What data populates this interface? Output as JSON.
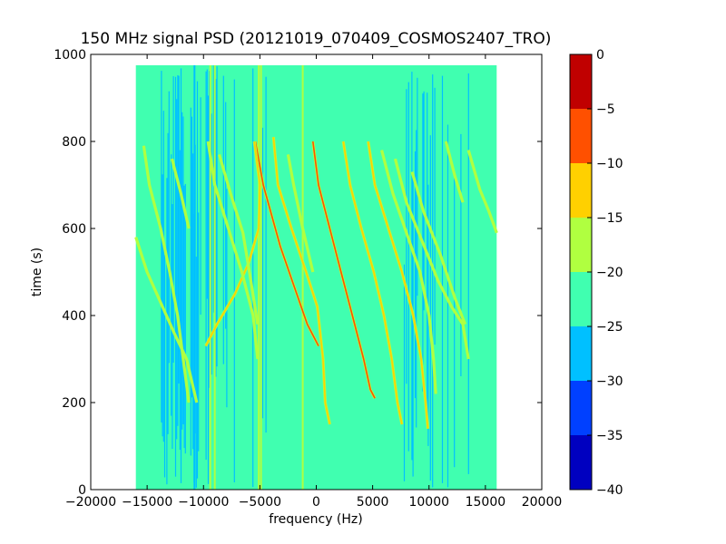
{
  "chart_data": {
    "type": "heatmap",
    "title": "150 MHz signal PSD (20121019_070409_COSMOS2407_TRO)",
    "xlabel": "frequency (Hz)",
    "ylabel": "time (s)",
    "xlim": [
      -20000,
      20000
    ],
    "ylim": [
      0,
      1000
    ],
    "xticks": [
      -20000,
      -15000,
      -10000,
      -5000,
      0,
      5000,
      10000,
      15000,
      20000
    ],
    "xtick_labels": [
      "−20000",
      "−15000",
      "−10000",
      "−5000",
      "0",
      "5000",
      "10000",
      "15000",
      "20000"
    ],
    "yticks": [
      0,
      200,
      400,
      600,
      800,
      1000
    ],
    "ytick_labels": [
      "0",
      "200",
      "400",
      "600",
      "800",
      "1000"
    ],
    "data_extent": {
      "x": [
        -16000,
        16000
      ],
      "y": [
        0,
        975
      ]
    },
    "grid": false,
    "colorbar": {
      "range": [
        -40,
        0
      ],
      "levels": [
        -40,
        -35,
        -30,
        -25,
        -20,
        -15,
        -10,
        -5,
        0
      ],
      "tick_labels": [
        "−40",
        "−35",
        "−30",
        "−25",
        "−20",
        "−15",
        "−10",
        "−5",
        "0"
      ],
      "colors": [
        "#0000c0",
        "#0040ff",
        "#00c0ff",
        "#40ffb0",
        "#b0ff40",
        "#ffd000",
        "#ff5000",
        "#c00000"
      ]
    },
    "vertical_lines": [
      {
        "x": -10800,
        "color": "#00c0ff"
      },
      {
        "x": -9400,
        "color": "#b0ff40"
      },
      {
        "x": -9000,
        "color": "#b0ff40"
      },
      {
        "x": -8600,
        "color": "#40ffb0"
      },
      {
        "x": -5100,
        "color": "#b0ff40"
      },
      {
        "x": -4900,
        "color": "#b0ff40"
      },
      {
        "x": -1200,
        "color": "#b0ff40"
      }
    ],
    "traces": [
      {
        "color": "#ff5000",
        "points": [
          [
            -5400,
            800
          ],
          [
            -4700,
            700
          ],
          [
            -3200,
            560
          ],
          [
            -2000,
            470
          ],
          [
            -800,
            380
          ],
          [
            200,
            330
          ]
        ]
      },
      {
        "color": "#ff5000",
        "points": [
          [
            -300,
            800
          ],
          [
            200,
            700
          ],
          [
            1200,
            600
          ],
          [
            2200,
            500
          ],
          [
            3200,
            400
          ],
          [
            4200,
            300
          ],
          [
            4800,
            230
          ],
          [
            5200,
            210
          ]
        ]
      },
      {
        "color": "#ffd000",
        "points": [
          [
            -3800,
            810
          ],
          [
            -3400,
            700
          ],
          [
            -2200,
            600
          ],
          [
            -900,
            500
          ],
          [
            100,
            420
          ],
          [
            600,
            300
          ],
          [
            800,
            200
          ],
          [
            1200,
            150
          ]
        ]
      },
      {
        "color": "#ffd000",
        "points": [
          [
            2400,
            800
          ],
          [
            3000,
            700
          ],
          [
            4000,
            600
          ],
          [
            5100,
            500
          ],
          [
            6000,
            400
          ],
          [
            6700,
            300
          ],
          [
            7200,
            200
          ],
          [
            7600,
            150
          ]
        ]
      },
      {
        "color": "#ffd000",
        "points": [
          [
            4600,
            800
          ],
          [
            5200,
            700
          ],
          [
            6400,
            600
          ],
          [
            7600,
            500
          ],
          [
            8600,
            400
          ],
          [
            9300,
            300
          ],
          [
            9700,
            200
          ],
          [
            9900,
            140
          ]
        ]
      },
      {
        "color": "#ffd000",
        "points": [
          [
            -5500,
            800
          ],
          [
            -5000,
            700
          ],
          [
            -5100,
            600
          ],
          [
            -6000,
            520
          ],
          [
            -7200,
            450
          ],
          [
            -8800,
            380
          ],
          [
            -9800,
            330
          ]
        ]
      },
      {
        "color": "#b0ff40",
        "points": [
          [
            -9600,
            800
          ],
          [
            -9000,
            700
          ],
          [
            -7800,
            600
          ],
          [
            -6600,
            500
          ],
          [
            -5600,
            400
          ],
          [
            -5200,
            300
          ]
        ]
      },
      {
        "color": "#b0ff40",
        "points": [
          [
            -8600,
            770
          ],
          [
            -7600,
            680
          ],
          [
            -6500,
            590
          ],
          [
            -5800,
            480
          ],
          [
            -5200,
            380
          ]
        ]
      },
      {
        "color": "#b0ff40",
        "points": [
          [
            -2500,
            770
          ],
          [
            -2000,
            700
          ],
          [
            -1200,
            600
          ],
          [
            -300,
            500
          ]
        ]
      },
      {
        "color": "#b0ff40",
        "points": [
          [
            5800,
            780
          ],
          [
            6800,
            680
          ],
          [
            8000,
            590
          ],
          [
            9200,
            500
          ],
          [
            10000,
            400
          ],
          [
            10400,
            300
          ],
          [
            10600,
            220
          ]
        ]
      },
      {
        "color": "#b0ff40",
        "points": [
          [
            7000,
            760
          ],
          [
            8000,
            660
          ],
          [
            9400,
            570
          ],
          [
            10800,
            480
          ],
          [
            12000,
            420
          ],
          [
            13000,
            380
          ],
          [
            13500,
            300
          ]
        ]
      },
      {
        "color": "#b0ff40",
        "points": [
          [
            8500,
            730
          ],
          [
            9500,
            640
          ],
          [
            11000,
            540
          ],
          [
            12300,
            440
          ],
          [
            13200,
            380
          ]
        ]
      },
      {
        "color": "#b0ff40",
        "points": [
          [
            -16000,
            580
          ],
          [
            -15000,
            500
          ],
          [
            -13800,
            430
          ],
          [
            -12600,
            360
          ],
          [
            -11500,
            300
          ],
          [
            -10600,
            200
          ]
        ]
      },
      {
        "color": "#b0ff40",
        "points": [
          [
            -15300,
            790
          ],
          [
            -14800,
            700
          ],
          [
            -13800,
            600
          ],
          [
            -13000,
            500
          ],
          [
            -12300,
            400
          ],
          [
            -11800,
            300
          ],
          [
            -11300,
            200
          ]
        ]
      },
      {
        "color": "#b0ff40",
        "points": [
          [
            -12800,
            760
          ],
          [
            -12000,
            680
          ],
          [
            -11300,
            600
          ]
        ]
      },
      {
        "color": "#b0ff40",
        "points": [
          [
            13500,
            780
          ],
          [
            14500,
            690
          ],
          [
            15300,
            640
          ],
          [
            16000,
            590
          ]
        ]
      },
      {
        "color": "#b0ff40",
        "points": [
          [
            11500,
            800
          ],
          [
            12300,
            720
          ],
          [
            13000,
            660
          ]
        ]
      }
    ]
  }
}
